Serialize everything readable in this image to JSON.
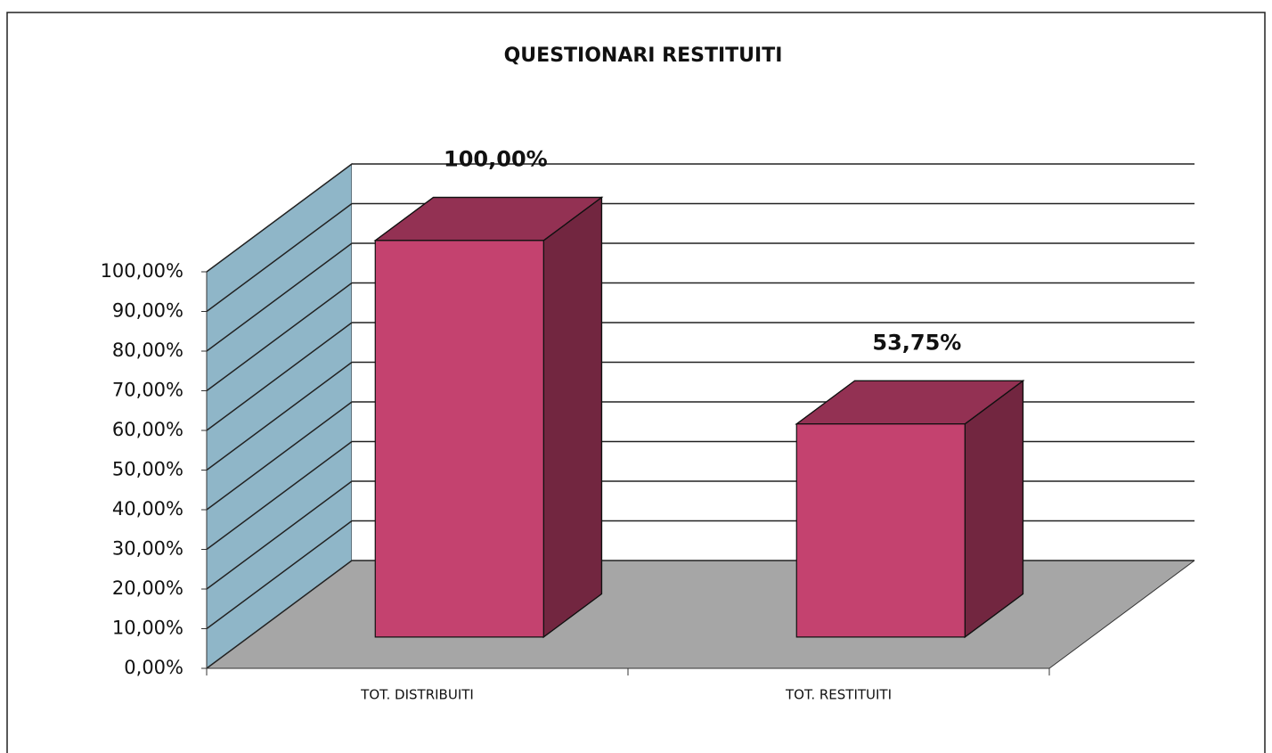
{
  "chart_data": {
    "type": "bar3d",
    "title": "QUESTIONARI RESTITUITI",
    "categories": [
      "TOT. DISTRIBUITI",
      "TOT. RESTITUITI"
    ],
    "values": [
      100,
      53.75
    ],
    "value_labels": [
      "100,00%",
      "53,75%"
    ],
    "color": "#c4426f",
    "ylim": [
      0,
      100
    ],
    "yticks": [
      {
        "value": 0,
        "label": "0,00%"
      },
      {
        "value": 10,
        "label": "10,00%"
      },
      {
        "value": 20,
        "label": "20,00%"
      },
      {
        "value": 30,
        "label": "30,00%"
      },
      {
        "value": 40,
        "label": "40,00%"
      },
      {
        "value": 50,
        "label": "50,00%"
      },
      {
        "value": 60,
        "label": "60,00%"
      },
      {
        "value": 70,
        "label": "70,00%"
      },
      {
        "value": 80,
        "label": "80,00%"
      },
      {
        "value": 90,
        "label": "90,00%"
      },
      {
        "value": 100,
        "label": "100,00%"
      }
    ],
    "grid": true
  }
}
